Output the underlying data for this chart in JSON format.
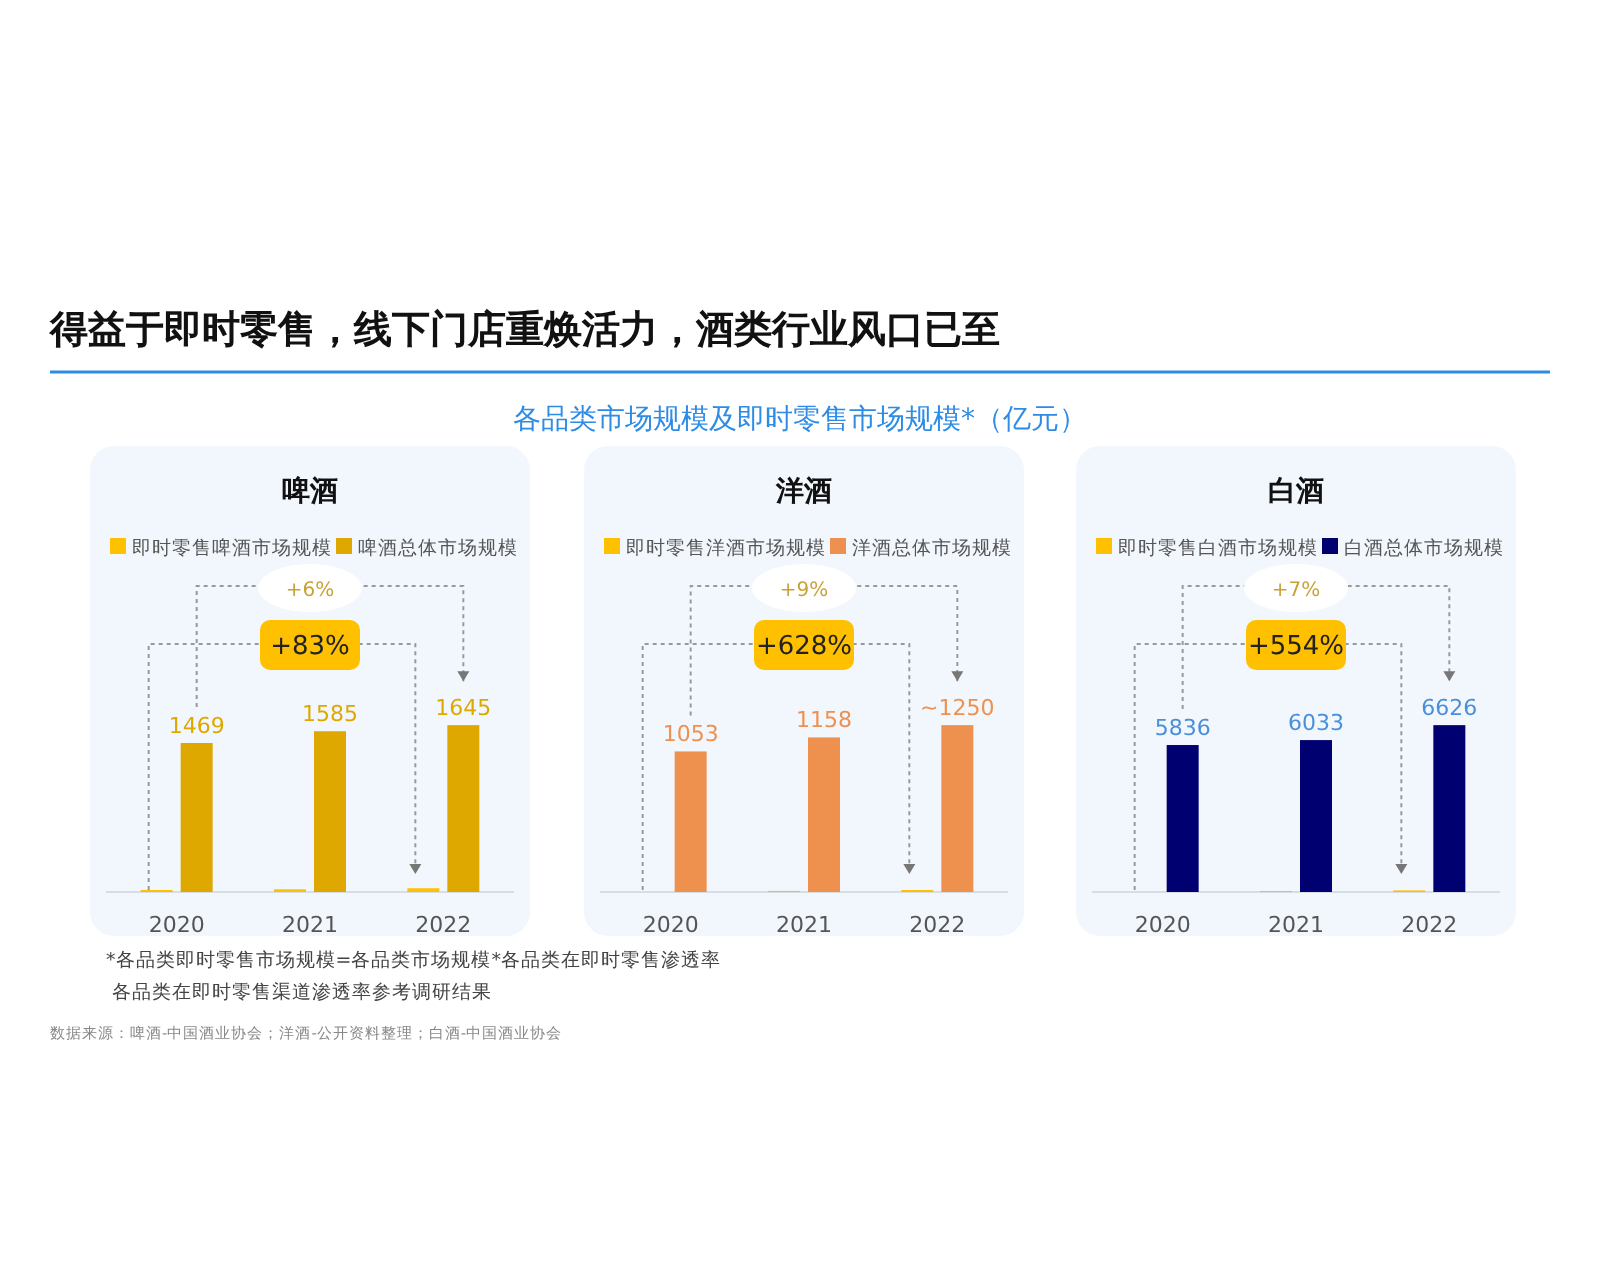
{
  "chart_data": [
    {
      "type": "other",
      "title": "得益于即时零售，线下门店重焕活力，酒类行业风口已至",
      "subtitle": "各品类市场规模及即时零售市场规模*（亿元）",
      "annotations": [
        "*各品类即时零售市场规模=各品类市场规模*各品类在即时零售渗透率",
        "各品类在即时零售渠道渗透率参考调研结果",
        "数据来源：啤酒-中国酒业协会；洋酒-公开资料整理；白酒-中国酒业协会"
      ]
    },
    {
      "type": "bar",
      "title": "啤酒",
      "categories": [
        "2020",
        "2021",
        "2022"
      ],
      "legend": "top",
      "annotations": [
        "+6%",
        "+83%"
      ],
      "series": [
        {
          "name": "即时零售啤酒市场规模",
          "color": "#ffc000",
          "values": [
            20,
            27,
            37
          ]
        },
        {
          "name": "啤酒总体市场规模",
          "color": "#dfa800",
          "values": [
            1469,
            1585,
            1645
          ],
          "value_labels": [
            "1469",
            "1585",
            "1645"
          ]
        }
      ]
    },
    {
      "type": "bar",
      "title": "洋酒",
      "categories": [
        "2020",
        "2021",
        "2022"
      ],
      "legend": "top",
      "annotations": [
        "+9%",
        "+628%"
      ],
      "series": [
        {
          "name": "即时零售洋酒市场规模",
          "color": "#ffc000",
          "values": [
            null,
            8,
            15
          ]
        },
        {
          "name": "洋酒总体市场规模",
          "color": "#ee914f",
          "values": [
            1053,
            1158,
            1250
          ],
          "value_labels": [
            "1053",
            "1158",
            "~1250"
          ]
        }
      ]
    },
    {
      "type": "bar",
      "title": "白酒",
      "categories": [
        "2020",
        "2021",
        "2022"
      ],
      "legend": "top",
      "annotations": [
        "+7%",
        "+554%"
      ],
      "series": [
        {
          "name": "即时零售白酒市场规模",
          "color": "#ffc000",
          "values": [
            null,
            40,
            65
          ]
        },
        {
          "name": "白酒总体市场规模",
          "color": "#000070",
          "values": [
            5836,
            6033,
            6626
          ],
          "value_labels": [
            "5836",
            "6033",
            "6626"
          ]
        }
      ]
    }
  ]
}
